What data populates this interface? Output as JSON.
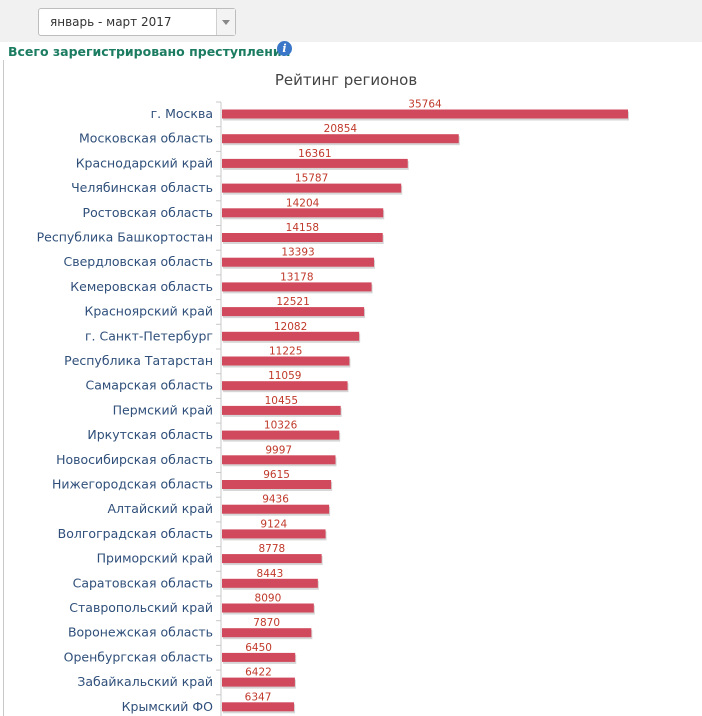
{
  "period_select": {
    "value": "январь - март 2017"
  },
  "header": {
    "title": "Всего зарегистрировано преступлений"
  },
  "icons": {
    "info": "info-icon",
    "dropdown": "chevron-down-icon"
  },
  "colors": {
    "bar": "#d0495c",
    "label": "#c0392b",
    "heading": "#1b7c61",
    "info": "#3a77c8"
  },
  "chart_data": {
    "type": "bar",
    "orientation": "horizontal",
    "title": "Рейтинг регионов",
    "xlabel": "",
    "ylabel": "",
    "xlim": [
      0,
      36000
    ],
    "grid": false,
    "legend": "none",
    "categories": [
      "г. Москва",
      "Московская область",
      "Краснодарский край",
      "Челябинская область",
      "Ростовская область",
      "Республика Башкортостан",
      "Свердловская область",
      "Кемеровская область",
      "Красноярский край",
      "г. Санкт-Петербург",
      "Республика Татарстан",
      "Самарская область",
      "Пермский край",
      "Иркутская область",
      "Новосибирская область",
      "Нижегородская область",
      "Алтайский край",
      "Волгоградская область",
      "Приморский край",
      "Саратовская область",
      "Ставропольский край",
      "Воронежская область",
      "Оренбургская область",
      "Забайкальский край",
      "Крымский ФО"
    ],
    "values": [
      35764,
      20854,
      16361,
      15787,
      14204,
      14158,
      13393,
      13178,
      12521,
      12082,
      11225,
      11059,
      10455,
      10326,
      9997,
      9615,
      9436,
      9124,
      8778,
      8443,
      8090,
      7870,
      6450,
      6422,
      6347
    ]
  }
}
